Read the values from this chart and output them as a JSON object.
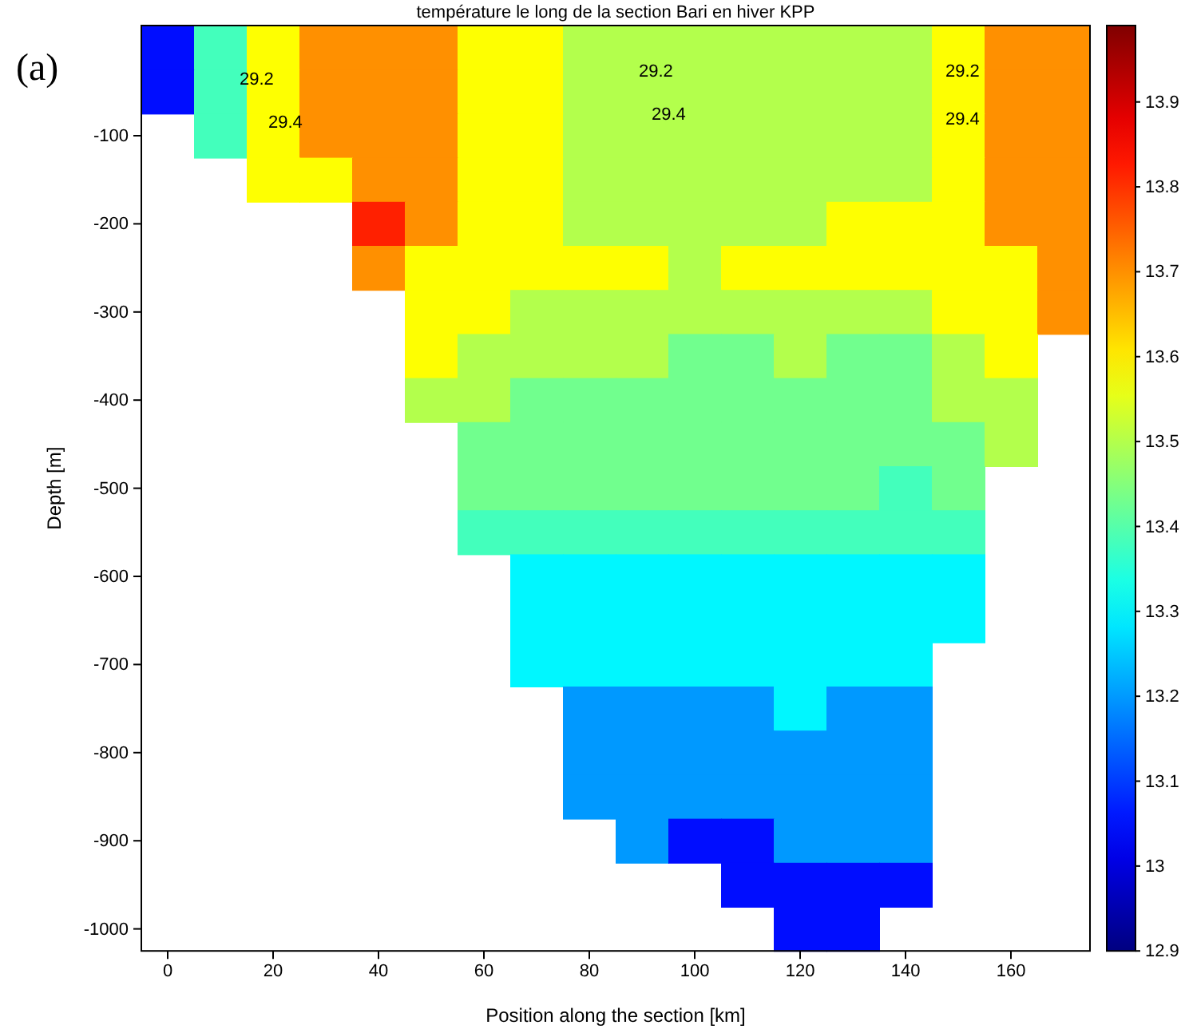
{
  "chart_data": {
    "type": "heatmap",
    "title": "température le long de la section Bari en hiver KPP",
    "xlabel": "Position along the section [km]",
    "ylabel": "Depth [m]",
    "categories": [
      "0",
      null,
      "20",
      null,
      "40",
      null,
      "60",
      null,
      "80",
      null,
      "100",
      null,
      "120",
      null,
      "140",
      null,
      "160",
      null
    ],
    "y_categories": [
      null,
      null,
      "-100",
      null,
      "-200",
      null,
      "-300",
      null,
      "-400",
      null,
      "-500",
      null,
      "-600",
      null,
      "-700",
      null,
      "-800",
      null,
      "-900",
      null,
      "-1000"
    ],
    "cells": [
      [
        13.05,
        13.38,
        13.58,
        13.7,
        13.7,
        13.7,
        13.58,
        13.58,
        13.5,
        13.5,
        13.5,
        13.5,
        13.5,
        13.5,
        13.5,
        13.58,
        13.7,
        13.7
      ],
      [
        13.05,
        13.38,
        13.58,
        13.7,
        13.7,
        13.7,
        13.58,
        13.58,
        13.5,
        13.5,
        13.5,
        13.5,
        13.5,
        13.5,
        13.5,
        13.58,
        13.7,
        13.7
      ],
      [
        null,
        13.38,
        13.58,
        13.7,
        13.7,
        13.7,
        13.58,
        13.58,
        13.5,
        13.5,
        13.5,
        13.5,
        13.5,
        13.5,
        13.5,
        13.58,
        13.7,
        13.7
      ],
      [
        null,
        null,
        13.58,
        13.58,
        13.7,
        13.7,
        13.58,
        13.58,
        13.5,
        13.5,
        13.5,
        13.5,
        13.5,
        13.5,
        13.5,
        13.58,
        13.7,
        13.7
      ],
      [
        null,
        null,
        null,
        null,
        13.82,
        13.7,
        13.58,
        13.58,
        13.5,
        13.5,
        13.5,
        13.5,
        13.5,
        13.58,
        13.58,
        13.58,
        13.7,
        13.7
      ],
      [
        null,
        null,
        null,
        null,
        13.7,
        13.58,
        13.58,
        13.58,
        13.58,
        13.58,
        13.5,
        13.58,
        13.58,
        13.58,
        13.58,
        13.58,
        13.58,
        13.7
      ],
      [
        null,
        null,
        null,
        null,
        null,
        13.58,
        13.58,
        13.5,
        13.5,
        13.5,
        13.5,
        13.5,
        13.5,
        13.5,
        13.5,
        13.58,
        13.58,
        13.7
      ],
      [
        null,
        null,
        null,
        null,
        null,
        13.58,
        13.5,
        13.5,
        13.5,
        13.5,
        13.43,
        13.43,
        13.5,
        13.43,
        13.43,
        13.5,
        13.58,
        null
      ],
      [
        null,
        null,
        null,
        null,
        null,
        13.5,
        13.5,
        13.43,
        13.43,
        13.43,
        13.43,
        13.43,
        13.43,
        13.43,
        13.43,
        13.5,
        13.5,
        null
      ],
      [
        null,
        null,
        null,
        null,
        null,
        null,
        13.43,
        13.43,
        13.43,
        13.43,
        13.43,
        13.43,
        13.43,
        13.43,
        13.43,
        13.43,
        13.5,
        null
      ],
      [
        null,
        null,
        null,
        null,
        null,
        null,
        13.43,
        13.43,
        13.43,
        13.43,
        13.43,
        13.43,
        13.43,
        13.43,
        13.38,
        13.43,
        null,
        null
      ],
      [
        null,
        null,
        null,
        null,
        null,
        null,
        13.38,
        13.38,
        13.38,
        13.38,
        13.38,
        13.38,
        13.38,
        13.38,
        13.38,
        13.38,
        null,
        null
      ],
      [
        null,
        null,
        null,
        null,
        null,
        null,
        null,
        13.3,
        13.3,
        13.3,
        13.3,
        13.3,
        13.3,
        13.3,
        13.3,
        13.3,
        null,
        null
      ],
      [
        null,
        null,
        null,
        null,
        null,
        null,
        null,
        13.3,
        13.3,
        13.3,
        13.3,
        13.3,
        13.3,
        13.3,
        13.3,
        13.3,
        null,
        null
      ],
      [
        null,
        null,
        null,
        null,
        null,
        null,
        null,
        13.3,
        13.3,
        13.3,
        13.3,
        13.3,
        13.3,
        13.3,
        13.3,
        null,
        null,
        null
      ],
      [
        null,
        null,
        null,
        null,
        null,
        null,
        null,
        null,
        13.2,
        13.2,
        13.2,
        13.2,
        13.3,
        13.2,
        13.2,
        null,
        null,
        null
      ],
      [
        null,
        null,
        null,
        null,
        null,
        null,
        null,
        null,
        13.2,
        13.2,
        13.2,
        13.2,
        13.2,
        13.2,
        13.2,
        null,
        null,
        null
      ],
      [
        null,
        null,
        null,
        null,
        null,
        null,
        null,
        null,
        13.2,
        13.2,
        13.2,
        13.2,
        13.2,
        13.2,
        13.2,
        null,
        null,
        null
      ],
      [
        null,
        null,
        null,
        null,
        null,
        null,
        null,
        null,
        null,
        13.2,
        13.05,
        13.05,
        13.2,
        13.2,
        13.2,
        null,
        null,
        null
      ],
      [
        null,
        null,
        null,
        null,
        null,
        null,
        null,
        null,
        null,
        null,
        null,
        13.05,
        13.05,
        13.05,
        13.05,
        null,
        null,
        null
      ],
      [
        null,
        null,
        null,
        null,
        null,
        null,
        null,
        null,
        null,
        null,
        null,
        null,
        13.05,
        13.05,
        null,
        null,
        null,
        null
      ]
    ],
    "clim": [
      12.9,
      13.99
    ],
    "cticks": [
      12.9,
      13,
      13.1,
      13.2,
      13.3,
      13.4,
      13.5,
      13.6,
      13.7,
      13.8,
      13.9
    ],
    "annotations": [
      "(a)",
      "29.2",
      "29.2",
      "29.2",
      "29.4",
      "29.4",
      "29.4"
    ]
  }
}
